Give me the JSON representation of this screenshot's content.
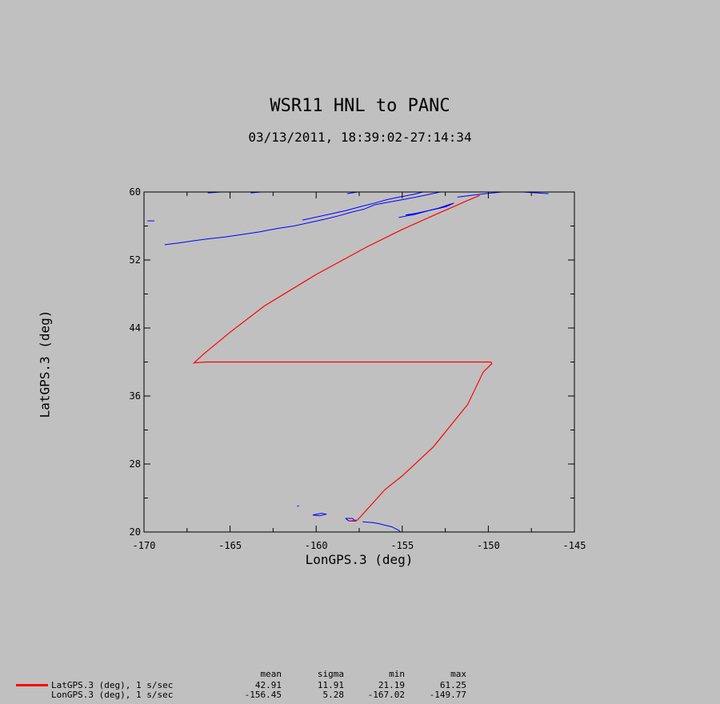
{
  "chart_data": {
    "type": "line",
    "title": "WSR11 HNL to PANC",
    "subtitle": "03/13/2011, 18:39:02-27:14:34",
    "xlabel": "LonGPS.3 (deg)",
    "ylabel": "LatGPS.3 (deg)",
    "xlim": [
      -170,
      -145
    ],
    "ylim": [
      20,
      60
    ],
    "xticks": [
      -170,
      -165,
      -160,
      -155,
      -150,
      -145
    ],
    "yticks": [
      20,
      28,
      36,
      44,
      52,
      60
    ],
    "xtick_labels": [
      "-170",
      "-165",
      "-160",
      "-155",
      "-150",
      "-145"
    ],
    "ytick_labels": [
      "20",
      "28",
      "36",
      "44",
      "52",
      "60"
    ],
    "series": [
      {
        "name": "LatGPS.3 (deg), 1 s/sec",
        "color": "#ff0000",
        "points": [
          [
            -158.1,
            21.3
          ],
          [
            -157.6,
            21.4
          ],
          [
            -156.8,
            23.2
          ],
          [
            -156.0,
            25.0
          ],
          [
            -155.0,
            26.6
          ],
          [
            -153.2,
            30.0
          ],
          [
            -151.2,
            35.0
          ],
          [
            -150.3,
            38.8
          ],
          [
            -149.8,
            39.8
          ],
          [
            -149.85,
            40.0
          ],
          [
            -153.3,
            40.0
          ],
          [
            -156.0,
            40.0
          ],
          [
            -160.0,
            40.0
          ],
          [
            -163.0,
            40.0
          ],
          [
            -166.4,
            40.0
          ],
          [
            -167.1,
            39.9
          ],
          [
            -166.5,
            41.0
          ],
          [
            -165.0,
            43.5
          ],
          [
            -163.0,
            46.6
          ],
          [
            -160.0,
            50.3
          ],
          [
            -157.0,
            53.6
          ],
          [
            -155.0,
            55.6
          ],
          [
            -153.0,
            57.4
          ],
          [
            -151.2,
            59.0
          ],
          [
            -150.5,
            59.6
          ]
        ]
      },
      {
        "name": "coastline",
        "color": "#0000ff",
        "segments": [
          [
            [
              -168.8,
              53.8
            ],
            [
              -168.0,
              54.0
            ],
            [
              -167.0,
              54.3
            ],
            [
              -166.2,
              54.5
            ],
            [
              -165.3,
              54.7
            ],
            [
              -164.3,
              55.0
            ],
            [
              -163.3,
              55.3
            ],
            [
              -162.3,
              55.7
            ],
            [
              -161.3,
              56.0
            ],
            [
              -160.4,
              56.4
            ],
            [
              -159.5,
              56.8
            ],
            [
              -158.7,
              57.2
            ],
            [
              -158.0,
              57.6
            ],
            [
              -157.2,
              58.0
            ],
            [
              -156.6,
              58.5
            ],
            [
              -155.8,
              58.8
            ],
            [
              -155.0,
              59.1
            ],
            [
              -154.2,
              59.4
            ],
            [
              -153.5,
              59.7
            ],
            [
              -152.8,
              60.0
            ]
          ],
          [
            [
              -160.8,
              56.7
            ],
            [
              -160.1,
              57.0
            ],
            [
              -159.2,
              57.4
            ],
            [
              -158.3,
              57.8
            ],
            [
              -157.4,
              58.3
            ],
            [
              -156.6,
              58.7
            ],
            [
              -155.9,
              59.1
            ],
            [
              -155.2,
              59.4
            ],
            [
              -154.4,
              59.7
            ],
            [
              -153.8,
              60.0
            ]
          ],
          [
            [
              -154.8,
              57.3
            ],
            [
              -154.2,
              57.5
            ],
            [
              -153.5,
              57.8
            ],
            [
              -152.8,
              58.1
            ],
            [
              -152.3,
              58.4
            ],
            [
              -152.0,
              58.7
            ],
            [
              -152.3,
              58.5
            ],
            [
              -152.9,
              58.1
            ],
            [
              -153.7,
              57.7
            ],
            [
              -154.4,
              57.3
            ],
            [
              -154.8,
              57.3
            ]
          ],
          [
            [
              -155.2,
              57.0
            ],
            [
              -154.2,
              57.4
            ],
            [
              -153.3,
              57.9
            ],
            [
              -152.4,
              58.3
            ]
          ],
          [
            [
              -151.8,
              59.4
            ],
            [
              -151.0,
              59.6
            ],
            [
              -150.2,
              59.8
            ],
            [
              -149.2,
              60.0
            ]
          ],
          [
            [
              -148.0,
              60.0
            ],
            [
              -147.2,
              59.9
            ],
            [
              -146.5,
              59.8
            ]
          ],
          [
            [
              -163.8,
              59.9
            ],
            [
              -163.2,
              60.0
            ]
          ],
          [
            [
              -158.2,
              59.8
            ],
            [
              -157.6,
              60.0
            ]
          ],
          [
            [
              -166.3,
              59.9
            ],
            [
              -165.5,
              60.0
            ]
          ],
          [
            [
              -160.2,
              22.0
            ],
            [
              -159.7,
              22.2
            ],
            [
              -159.4,
              22.1
            ],
            [
              -159.8,
              21.9
            ],
            [
              -160.2,
              22.0
            ]
          ],
          [
            [
              -158.3,
              21.6
            ],
            [
              -157.9,
              21.6
            ],
            [
              -157.7,
              21.3
            ],
            [
              -158.1,
              21.3
            ],
            [
              -158.3,
              21.6
            ]
          ],
          [
            [
              -157.3,
              21.2
            ],
            [
              -156.7,
              21.1
            ],
            [
              -156.4,
              21.0
            ],
            [
              -156.0,
              20.8
            ],
            [
              -155.6,
              20.6
            ],
            [
              -155.2,
              20.2
            ],
            [
              -155.1,
              20.0
            ]
          ],
          [
            [
              -161.1,
              23.0
            ],
            [
              -161.0,
              23.1
            ]
          ],
          [
            [
              -169.8,
              56.6
            ],
            [
              -169.4,
              56.6
            ]
          ]
        ]
      }
    ],
    "stats": {
      "headers": [
        "mean",
        "sigma",
        "min",
        "max"
      ],
      "rows": [
        {
          "name": "LatGPS.3 (deg), 1 s/sec",
          "mean": "42.91",
          "sigma": "11.91",
          "min": "21.19",
          "max": "61.25"
        },
        {
          "name": "LonGPS.3 (deg), 1 s/sec",
          "mean": "-156.45",
          "sigma": "5.28",
          "min": "-167.02",
          "max": "-149.77"
        }
      ]
    }
  }
}
